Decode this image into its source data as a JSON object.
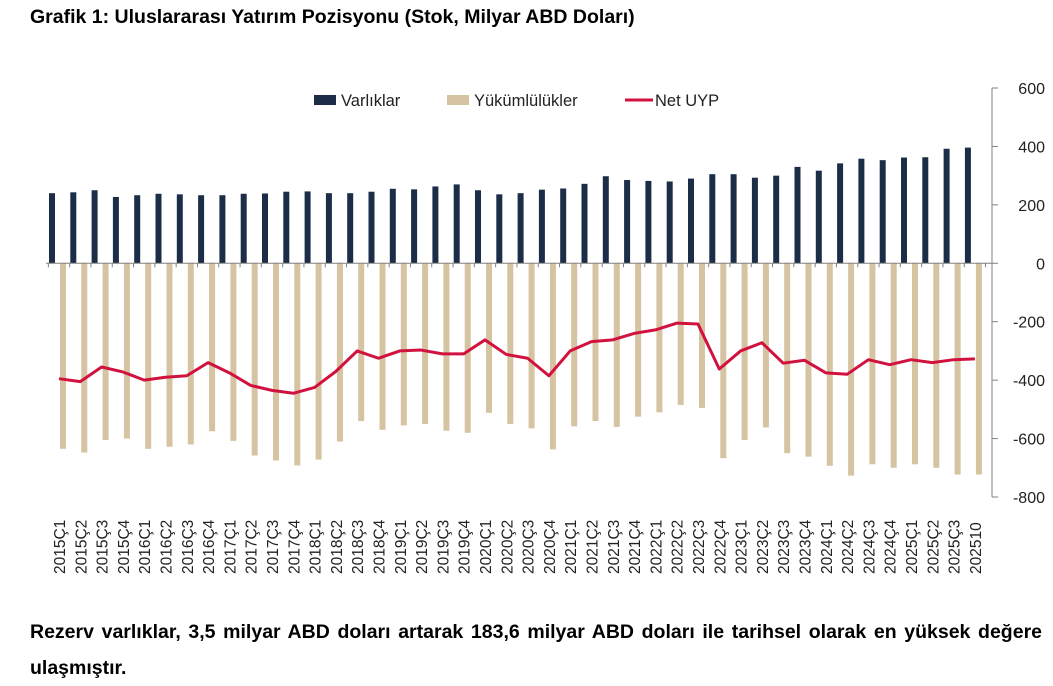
{
  "header": {
    "title": "Grafik 1: Uluslararası Yatırım Pozisyonu (Stok, Milyar ABD Doları)"
  },
  "footer": {
    "text": "Rezerv varlıklar, 3,5 milyar ABD doları artarak 183,6 milyar ABD doları ile tarihsel olarak en yüksek değere ulaşmıştır."
  },
  "colors": {
    "assets": "#1c2e47",
    "liabilities": "#d6c3a2",
    "net": "#d1123f"
  },
  "chart_data": {
    "type": "bar",
    "legend": [
      "Varlıklar",
      "Yükümlülükler",
      "Net UYP"
    ],
    "legend_placement": "top",
    "ylim": [
      -800,
      600
    ],
    "yticks": [
      600,
      400,
      200,
      0,
      -200,
      -400,
      -600,
      -800
    ],
    "y_axis_side": "right",
    "categories": [
      "2015Ç1",
      "2015Ç2",
      "2015Ç3",
      "2015Ç4",
      "2016Ç1",
      "2016Ç2",
      "2016Ç3",
      "2016Ç4",
      "2017Ç1",
      "2017Ç2",
      "2017Ç3",
      "2017Ç4",
      "2018Ç1",
      "2018Ç2",
      "2018Ç3",
      "2018Ç4",
      "2019Ç1",
      "2019Ç2",
      "2019Ç3",
      "2019Ç4",
      "2020Ç1",
      "2020Ç2",
      "2020Ç3",
      "2020Ç4",
      "2021Ç1",
      "2021Ç2",
      "2021Ç3",
      "2021Ç4",
      "2022Ç1",
      "2022Ç2",
      "2022Ç3",
      "2022Ç4",
      "2023Ç1",
      "2023Ç2",
      "2023Ç3",
      "2023Ç4",
      "2024Ç1",
      "2024Ç2",
      "2024Ç3",
      "2024Ç4",
      "2025Ç1",
      "2025Ç2",
      "2025Ç3",
      "202510"
    ],
    "series": [
      {
        "name": "Varlıklar",
        "kind": "bar",
        "values": [
          240,
          243,
          250,
          227,
          233,
          238,
          236,
          233,
          233,
          238,
          239,
          245,
          246,
          240,
          240,
          245,
          255,
          253,
          263,
          270,
          250,
          236,
          240,
          252,
          256,
          272,
          298,
          285,
          282,
          280,
          290,
          305,
          305,
          293,
          300,
          330,
          317,
          342,
          358,
          353,
          362,
          363,
          392,
          396
        ]
      },
      {
        "name": "Yükümlülükler",
        "kind": "bar",
        "values": [
          -635,
          -648,
          -605,
          -600,
          -635,
          -628,
          -620,
          -575,
          -608,
          -658,
          -675,
          -692,
          -672,
          -610,
          -540,
          -570,
          -555,
          -550,
          -573,
          -580,
          -512,
          -550,
          -565,
          -637,
          -558,
          -540,
          -560,
          -525,
          -510,
          -485,
          -495,
          -667,
          -605,
          -562,
          -650,
          -662,
          -693,
          -727,
          -688,
          -700,
          -688,
          -700,
          -723,
          -723
        ]
      },
      {
        "name": "Net UYP",
        "kind": "line",
        "values": [
          -395,
          -405,
          -355,
          -372,
          -400,
          -390,
          -385,
          -340,
          -375,
          -418,
          -435,
          -445,
          -425,
          -370,
          -300,
          -325,
          -300,
          -297,
          -310,
          -310,
          -262,
          -312,
          -325,
          -385,
          -300,
          -268,
          -262,
          -240,
          -228,
          -205,
          -208,
          -362,
          -300,
          -272,
          -342,
          -332,
          -375,
          -380,
          -330,
          -347,
          -330,
          -340,
          -330,
          -327
        ]
      }
    ]
  }
}
